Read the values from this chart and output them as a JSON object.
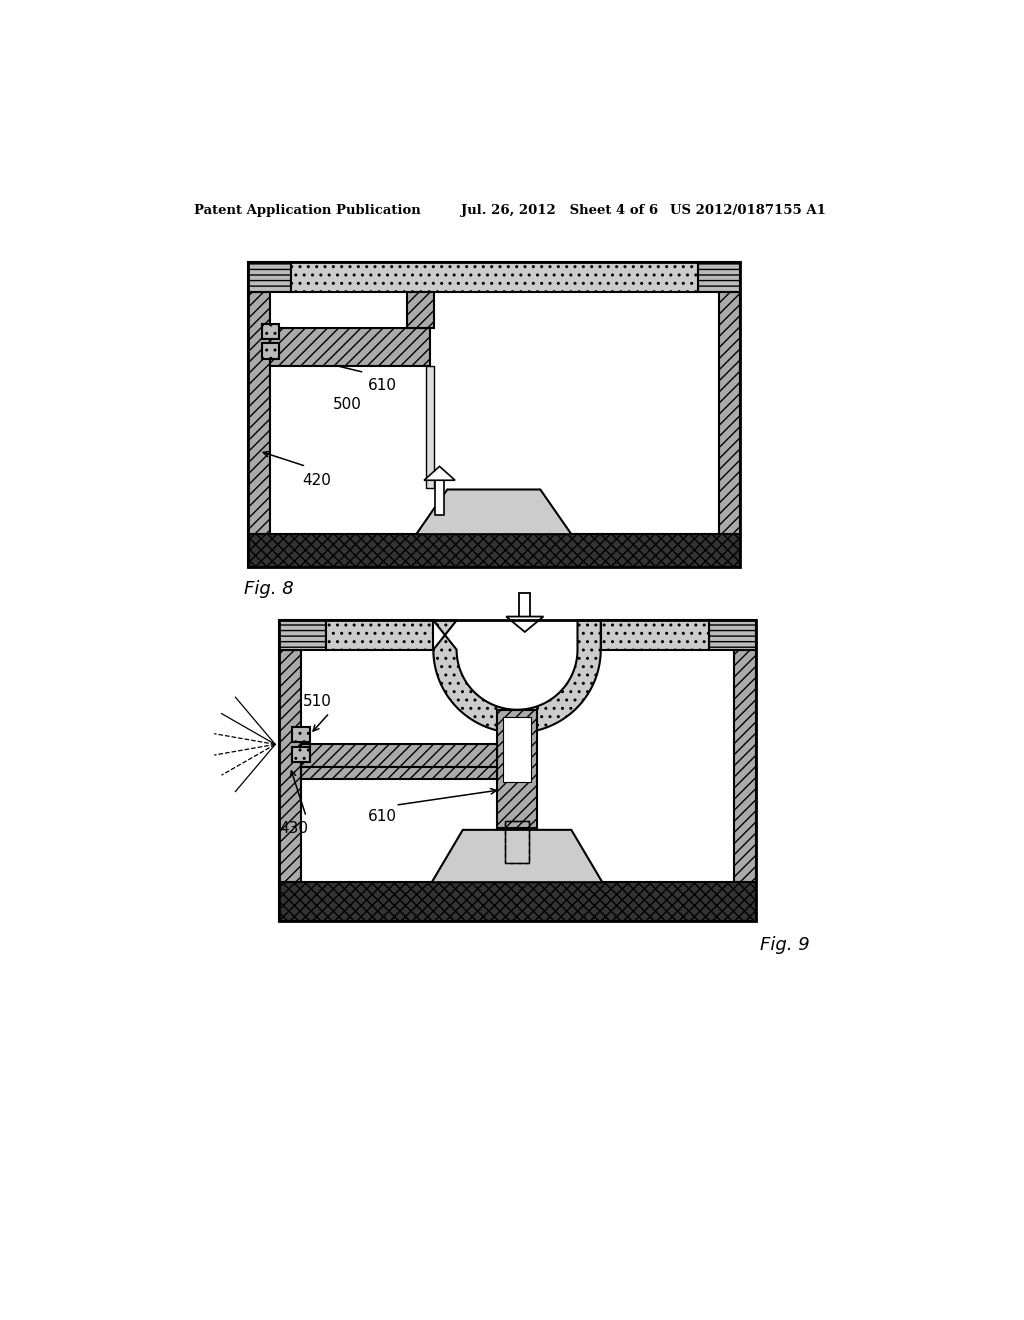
{
  "bg_color": "#ffffff",
  "header_left": "Patent Application Publication",
  "header_mid": "Jul. 26, 2012   Sheet 4 of 6",
  "header_right": "US 2012/0187155 A1",
  "fig8_label": "Fig. 8",
  "fig9_label": "Fig. 9",
  "wall_fc": "#aaaaaa",
  "wall_fc_dark": "#555555",
  "inner_fc": "#cccccc"
}
